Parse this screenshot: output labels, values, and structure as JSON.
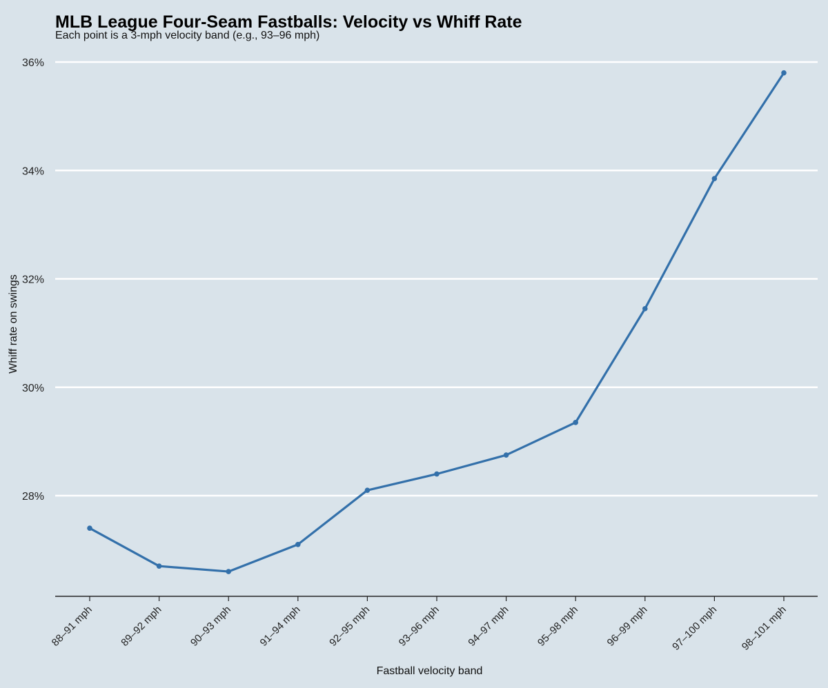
{
  "chart_data": {
    "type": "line",
    "title": "MLB League Four-Seam Fastballs: Velocity vs Whiff Rate",
    "subtitle": "Each point is a 3-mph velocity band (e.g., 93–96 mph)",
    "xlabel": "Fastball velocity band",
    "ylabel": "Whiff rate on swings",
    "categories": [
      "88–91 mph",
      "89–92 mph",
      "90–93 mph",
      "91–94 mph",
      "92–95 mph",
      "93–96 mph",
      "94–97 mph",
      "95–98 mph",
      "96–99 mph",
      "97–100 mph",
      "98–101 mph"
    ],
    "series": [
      {
        "values": [
          27.4,
          26.7,
          26.6,
          27.1,
          28.1,
          28.4,
          28.75,
          29.35,
          31.45,
          33.85,
          35.8
        ]
      }
    ],
    "yticks": [
      28,
      30,
      32,
      34,
      36
    ],
    "ytick_labels": [
      "28%",
      "30%",
      "32%",
      "34%",
      "36%"
    ],
    "ylim": [
      26.2,
      36.2
    ],
    "grid": "horizontal",
    "colors": {
      "line": "#3370aa",
      "background": "#d9e3ea",
      "grid": "#ffffff"
    }
  }
}
